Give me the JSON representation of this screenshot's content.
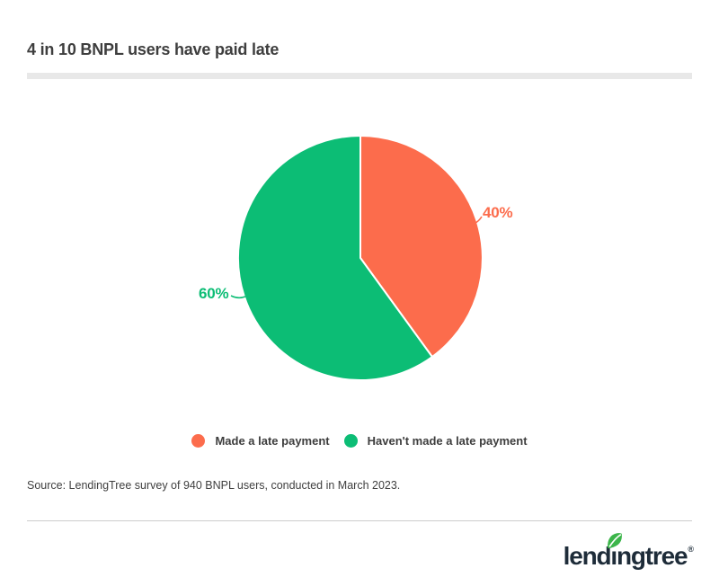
{
  "page": {
    "title": "4 in 10 BNPL users have paid late",
    "source_note": "Source: LendingTree survey of 940 BNPL users, conducted in March 2023.",
    "brand": {
      "name": "lendingtree",
      "logo_pre": "lend",
      "logo_i": "ı",
      "logo_post": "ngtree",
      "registered_mark": "®",
      "logo_color": "#1e2c39",
      "leaf_color": "#3bb54a"
    },
    "colors": {
      "title_text": "#3e3e3e",
      "divider_bar": "#e8e8e8",
      "footer_rule": "#cccccc",
      "accent_orange": "#fc6c4c",
      "accent_green": "#0cbd75"
    }
  },
  "chart_data": {
    "type": "pie",
    "title": "4 in 10 BNPL users have paid late",
    "start_angle": "12 o'clock",
    "direction": "clockwise",
    "legend_position": "bottom",
    "series": [
      {
        "label": "Made a late payment",
        "value": 40,
        "display": "40%",
        "color": "#fc6c4c"
      },
      {
        "label": "Haven't made a late payment",
        "value": 60,
        "display": "60%",
        "color": "#0cbd75"
      }
    ]
  }
}
